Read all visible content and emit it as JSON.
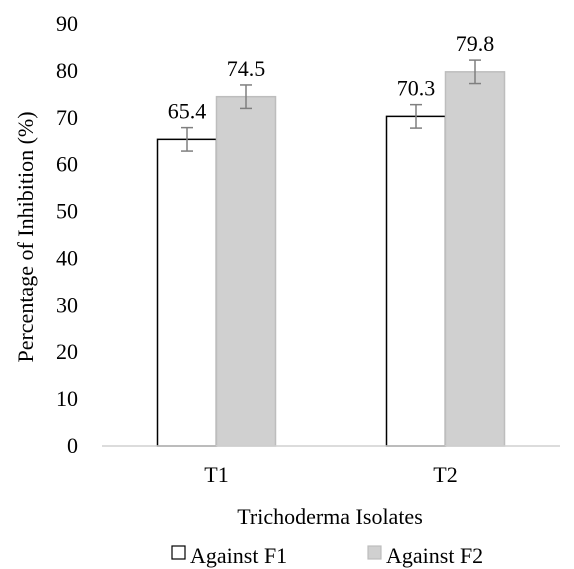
{
  "chart_data": {
    "type": "bar",
    "title": "",
    "xlabel": "Trichoderma Isolates",
    "ylabel": "Percentage of Inhibition (%)",
    "ylim": [
      0,
      90
    ],
    "yticks": [
      0,
      10,
      20,
      30,
      40,
      50,
      60,
      70,
      80,
      90
    ],
    "categories": [
      "T1",
      "T2"
    ],
    "series": [
      {
        "name": "Against F1",
        "values": [
          65.4,
          70.3
        ],
        "labels": [
          "65.4",
          "70.3"
        ],
        "error": [
          2.5,
          2.5
        ],
        "fill": "#ffffff",
        "stroke": "#000000"
      },
      {
        "name": "Against F2",
        "values": [
          74.5,
          79.8
        ],
        "labels": [
          "74.5",
          "79.8"
        ],
        "error": [
          2.5,
          2.5
        ],
        "fill": "#d0d0d0",
        "stroke": "#bdbdbd"
      }
    ],
    "legend_position": "bottom",
    "grid": false,
    "colors": {
      "axis": "#d0d0d0",
      "error_bar": "#7f7f7f"
    }
  }
}
